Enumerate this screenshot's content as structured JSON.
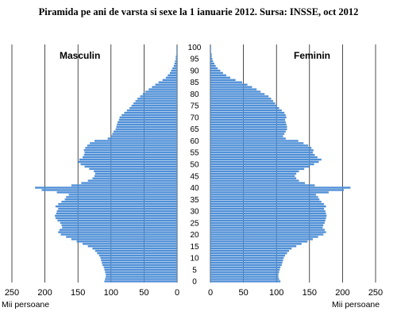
{
  "chart_data": {
    "type": "bar",
    "title": "Piramida pe ani de varsta si sexe la 1 ianuarie 2012. Sursa: INSSE, oct 2012",
    "xlabel": "Mii persoane",
    "ylabel": "",
    "xlim": [
      0,
      250
    ],
    "x_ticks": [
      "250",
      "200",
      "150",
      "100",
      "50",
      "0"
    ],
    "x_ticks_right": [
      "0",
      "50",
      "100",
      "150",
      "200",
      "250"
    ],
    "age_ticks": [
      "0",
      "5",
      "10",
      "15",
      "20",
      "25",
      "30",
      "35",
      "40",
      "45",
      "50",
      "55",
      "60",
      "65",
      "70",
      "75",
      "80",
      "85",
      "90",
      "95",
      "100"
    ],
    "grid": "vertical",
    "bar_color": "#4f8fd6",
    "series": [
      {
        "name": "Masculin",
        "values": [
          110,
          109,
          108,
          108,
          109,
          110,
          111,
          113,
          114,
          115,
          116,
          118,
          121,
          124,
          128,
          135,
          143,
          152,
          160,
          168,
          176,
          180,
          178,
          174,
          175,
          177,
          181,
          184,
          185,
          183,
          182,
          180,
          184,
          180,
          175,
          170,
          168,
          164,
          182,
          205,
          215,
          160,
          145,
          135,
          128,
          125,
          124,
          126,
          133,
          140,
          146,
          150,
          148,
          143,
          141,
          140,
          141,
          139,
          136,
          132,
          125,
          105,
          100,
          98,
          96,
          93,
          92,
          91,
          90,
          88,
          87,
          84,
          80,
          76,
          72,
          69,
          66,
          63,
          60,
          56,
          52,
          48,
          43,
          38,
          33,
          28,
          22,
          17,
          14,
          11,
          9,
          7,
          5,
          4,
          3,
          2,
          2,
          1,
          1,
          1,
          1
        ]
      },
      {
        "name": "Feminin",
        "values": [
          106,
          104,
          103,
          103,
          104,
          105,
          106,
          108,
          109,
          110,
          111,
          113,
          116,
          119,
          123,
          130,
          138,
          147,
          155,
          163,
          171,
          175,
          173,
          170,
          171,
          173,
          174,
          175,
          176,
          175,
          174,
          172,
          175,
          172,
          168,
          165,
          163,
          160,
          179,
          202,
          212,
          158,
          143,
          134,
          130,
          128,
          130,
          134,
          142,
          150,
          157,
          164,
          168,
          162,
          158,
          155,
          156,
          153,
          148,
          141,
          133,
          114,
          110,
          112,
          114,
          116,
          116,
          115,
          114,
          113,
          115,
          114,
          112,
          108,
          104,
          101,
          98,
          95,
          92,
          88,
          82,
          76,
          70,
          63,
          56,
          48,
          38,
          30,
          24,
          19,
          15,
          11,
          8,
          6,
          4,
          3,
          2,
          2,
          1,
          1,
          1
        ]
      }
    ]
  }
}
